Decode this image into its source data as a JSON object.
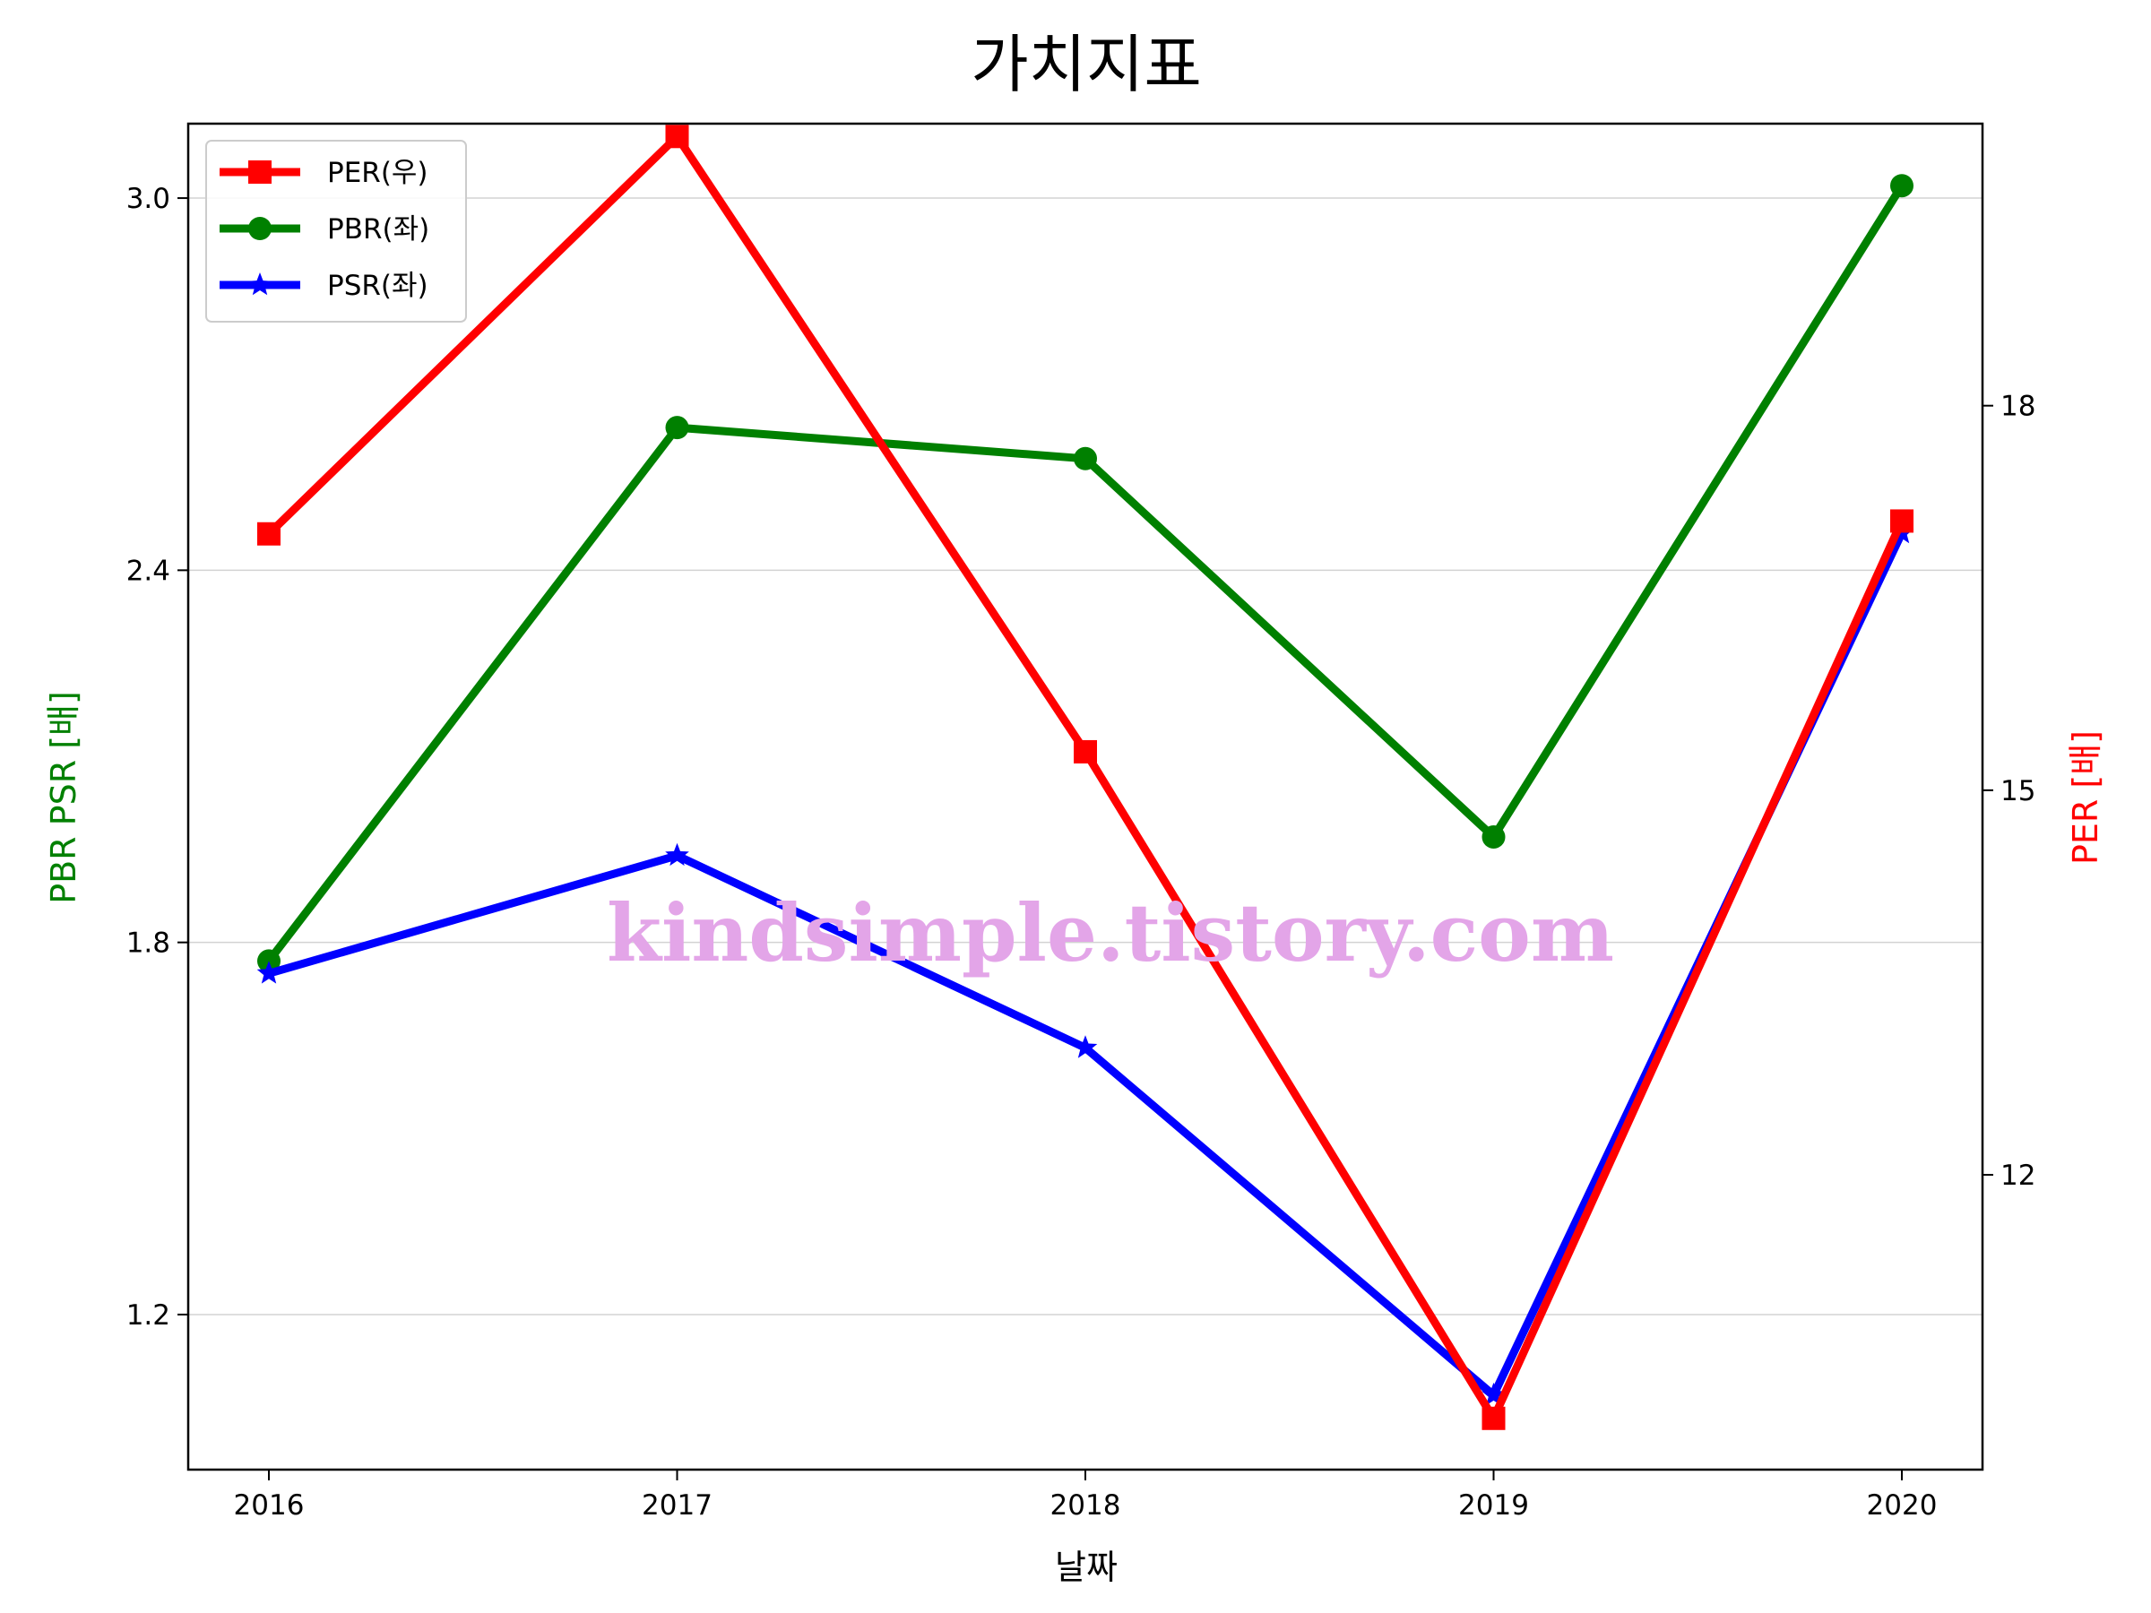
{
  "chart_data": {
    "type": "line",
    "title": "가치지표",
    "xlabel": "날짜",
    "ylabel_left": "PBR PSR [배]",
    "ylabel_right": "PER [배]",
    "x": [
      "2016",
      "2017",
      "2018",
      "2019",
      "2020"
    ],
    "left_ylim": [
      0.95,
      3.12
    ],
    "left_yticks": [
      "1.2",
      "1.8",
      "2.4",
      "3.0"
    ],
    "right_ylim": [
      9.7,
      20.2
    ],
    "right_yticks": [
      "12",
      "15",
      "18"
    ],
    "grid": "horizontal",
    "legend_position": "top-left",
    "series": [
      {
        "name": "PER(우)",
        "axis": "right",
        "color": "#ff0000",
        "marker": "square",
        "values": [
          17.0,
          20.1,
          15.3,
          10.1,
          17.1
        ]
      },
      {
        "name": "PBR(좌)",
        "axis": "left",
        "color": "#008000",
        "marker": "circle",
        "values": [
          1.77,
          2.63,
          2.58,
          1.97,
          3.02
        ]
      },
      {
        "name": "PSR(좌)",
        "axis": "left",
        "color": "#0000ff",
        "marker": "star",
        "values": [
          1.75,
          1.94,
          1.63,
          1.07,
          2.46
        ]
      }
    ],
    "watermark": "kindsimple.tistory.com"
  }
}
